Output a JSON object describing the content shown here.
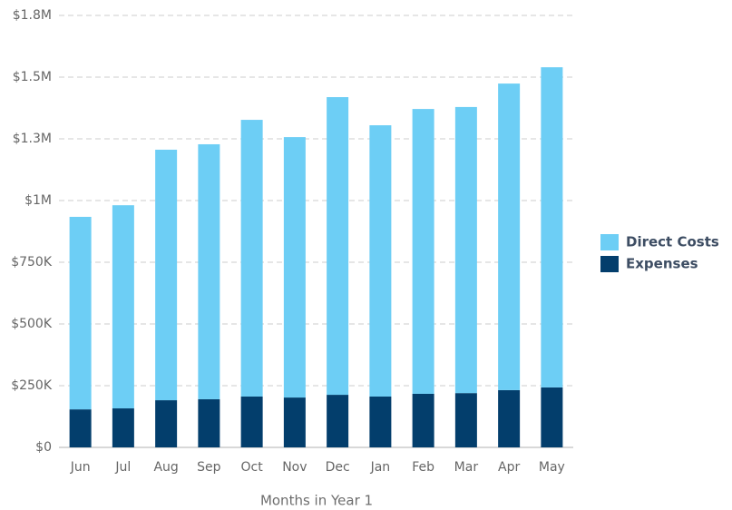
{
  "chart_data": {
    "type": "stacked_bar",
    "x_label": "Months in Year 1",
    "categories": [
      "Jun",
      "Jul",
      "Aug",
      "Sep",
      "Oct",
      "Nov",
      "Dec",
      "Jan",
      "Feb",
      "Mar",
      "Apr",
      "May"
    ],
    "series": [
      {
        "name": "Expenses",
        "color": "#033e6c",
        "values": [
          154000,
          158000,
          191000,
          195000,
          206000,
          202000,
          213000,
          206000,
          217000,
          220000,
          232000,
          243000
        ]
      },
      {
        "name": "Direct Costs",
        "color": "#6dcef5",
        "values": [
          780000,
          823000,
          1015000,
          1033000,
          1121000,
          1055000,
          1206000,
          1099000,
          1154000,
          1159000,
          1242000,
          1297000
        ]
      }
    ],
    "ylim": [
      0,
      1750000
    ],
    "yticks": [
      {
        "value": 0,
        "label": "$0"
      },
      {
        "value": 250000,
        "label": "$250K"
      },
      {
        "value": 500000,
        "label": "$500K"
      },
      {
        "value": 750000,
        "label": "$750K"
      },
      {
        "value": 1000000,
        "label": "$1M"
      },
      {
        "value": 1250000,
        "label": "$1.3M"
      },
      {
        "value": 1500000,
        "label": "$1.5M"
      },
      {
        "value": 1750000,
        "label": "$1.8M"
      }
    ],
    "grid": true,
    "legend": "right"
  }
}
